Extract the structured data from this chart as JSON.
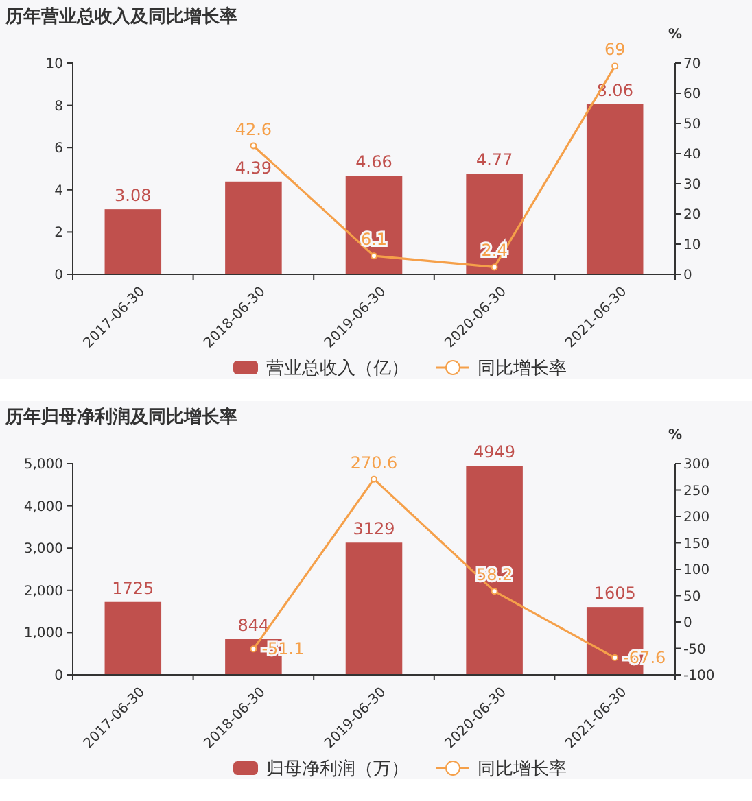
{
  "chart_data": [
    {
      "type": "bar",
      "title": "历年营业总收入及同比增长率",
      "y2label": "%",
      "categories": [
        "2017-06-30",
        "2018-06-30",
        "2019-06-30",
        "2020-06-30",
        "2021-06-30"
      ],
      "series": [
        {
          "name": "营业总收入（亿）",
          "color": "#c0504d",
          "values": [
            3.08,
            4.39,
            4.66,
            4.77,
            8.06
          ]
        },
        {
          "name": "同比增长率",
          "type": "line",
          "axis": "y2",
          "color": "#f5a04a",
          "values": [
            null,
            42.6,
            6.1,
            2.4,
            69
          ]
        }
      ],
      "ylim": [
        0,
        10
      ],
      "yticks": [
        0,
        2,
        4,
        6,
        8,
        10
      ],
      "y2lim": [
        0,
        70
      ],
      "y2ticks": [
        0,
        10,
        20,
        30,
        40,
        50,
        60,
        70
      ],
      "data_labels": true,
      "marker": "circle",
      "legend": "bottom",
      "grid": false
    },
    {
      "type": "bar",
      "title": "历年归母净利润及同比增长率",
      "y2label": "%",
      "categories": [
        "2017-06-30",
        "2018-06-30",
        "2019-06-30",
        "2020-06-30",
        "2021-06-30"
      ],
      "series": [
        {
          "name": "归母净利润（万）",
          "color": "#c0504d",
          "values": [
            1725,
            844,
            3129,
            4949,
            1605
          ]
        },
        {
          "name": "同比增长率",
          "type": "line",
          "axis": "y2",
          "color": "#f5a04a",
          "values": [
            null,
            -51.1,
            270.6,
            58.2,
            -67.6
          ]
        }
      ],
      "ylim": [
        0,
        5000
      ],
      "yticks": [
        {
          "value": 0,
          "label": "0"
        },
        {
          "value": 1000,
          "label": "1,000"
        },
        {
          "value": 2000,
          "label": "2,000"
        },
        {
          "value": 3000,
          "label": "3,000"
        },
        {
          "value": 4000,
          "label": "4,000"
        },
        {
          "value": 5000,
          "label": "5,000"
        }
      ],
      "y2lim": [
        -100,
        300
      ],
      "y2ticks": [
        -100,
        -50,
        0,
        50,
        100,
        150,
        200,
        250,
        300
      ],
      "data_labels": true,
      "marker": "circle",
      "legend": "bottom",
      "grid": false
    }
  ]
}
